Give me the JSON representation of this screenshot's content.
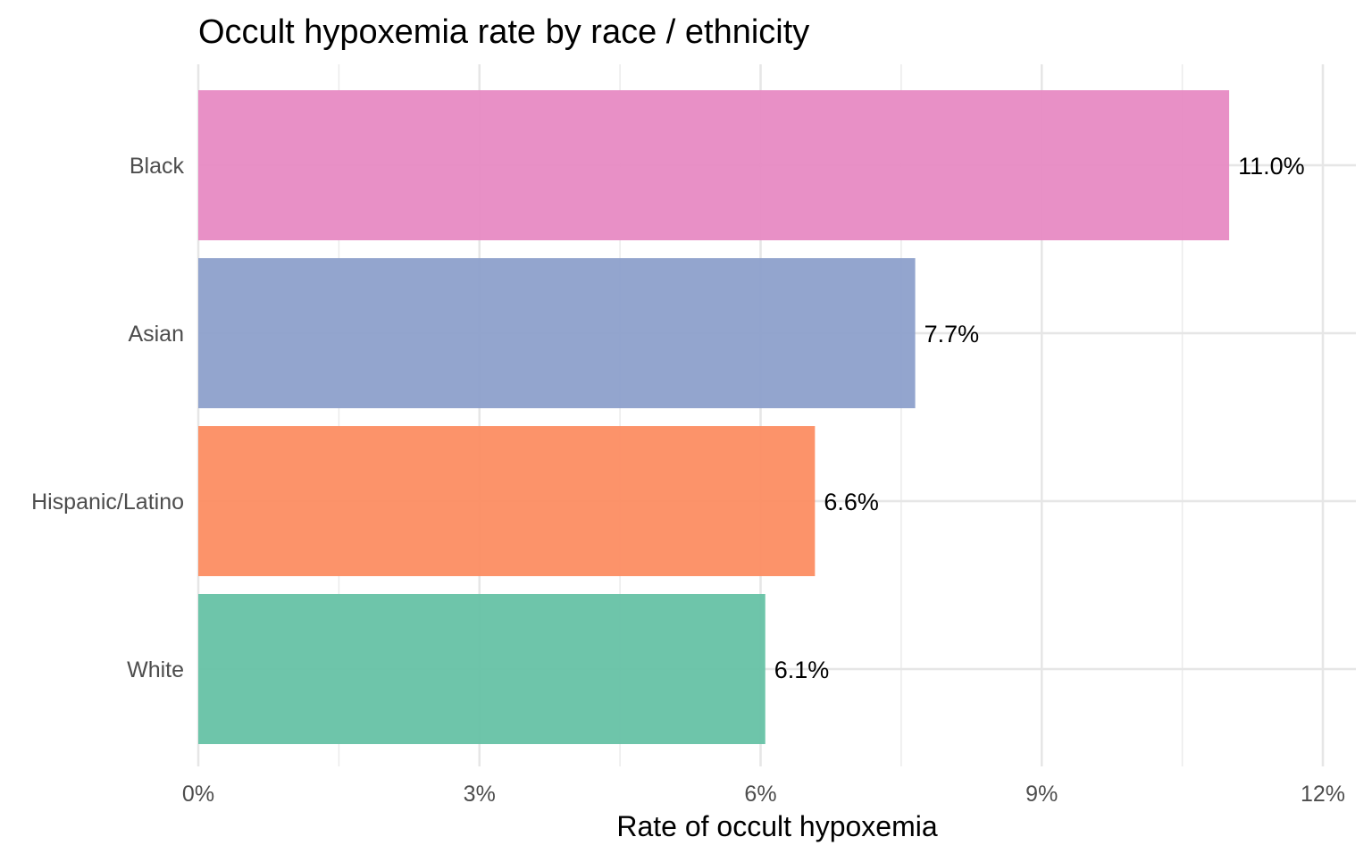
{
  "chart_data": {
    "type": "bar",
    "orientation": "horizontal",
    "title": "Occult hypoxemia rate by race / ethnicity",
    "xlabel": "Rate of occult hypoxemia",
    "ylabel": "",
    "xlim": [
      0,
      12
    ],
    "x_ticks": [
      0,
      3,
      6,
      9,
      12
    ],
    "x_tick_labels": [
      "0%",
      "3%",
      "6%",
      "9%",
      "12%"
    ],
    "grid": true,
    "legend": "none",
    "categories": [
      "Black",
      "Asian",
      "Hispanic/Latino",
      "White"
    ],
    "values": [
      11.0,
      7.65,
      6.58,
      6.05
    ],
    "value_labels": [
      "11.0%",
      "7.7%",
      "6.6%",
      "6.1%"
    ],
    "colors": [
      "#E78AC3",
      "#8DA0CB",
      "#FC8D62",
      "#66C2A5"
    ]
  }
}
